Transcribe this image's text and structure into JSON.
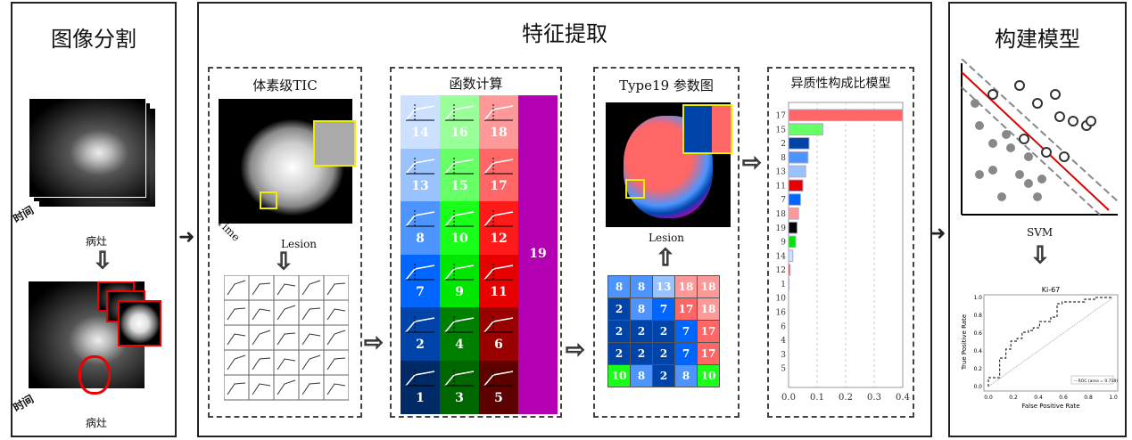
{
  "panels": {
    "segmentation": {
      "title": "图像分割",
      "time_label": "时间",
      "lesion_label": "病灶"
    },
    "feature": {
      "title": "特征提取",
      "tic": {
        "title": "体素级TIC",
        "time_label": "Time",
        "lesion_label": "Lesion"
      },
      "functions": {
        "title": "函数计算",
        "columns": [
          [
            {
              "n": "14",
              "color": "#cce0ff"
            },
            {
              "n": "13",
              "color": "#99c2ff"
            },
            {
              "n": "8",
              "color": "#4d94ff"
            },
            {
              "n": "7",
              "color": "#0066ff"
            },
            {
              "n": "2",
              "color": "#0044aa"
            },
            {
              "n": "1",
              "color": "#002a66"
            }
          ],
          [
            {
              "n": "16",
              "color": "#99ff99"
            },
            {
              "n": "15",
              "color": "#66ff66"
            },
            {
              "n": "10",
              "color": "#1aff1a"
            },
            {
              "n": "9",
              "color": "#00e600"
            },
            {
              "n": "4",
              "color": "#008000"
            },
            {
              "n": "3",
              "color": "#006600"
            }
          ],
          [
            {
              "n": "18",
              "color": "#ff9999"
            },
            {
              "n": "17",
              "color": "#ff6666"
            },
            {
              "n": "12",
              "color": "#ff1a1a"
            },
            {
              "n": "11",
              "color": "#e60000"
            },
            {
              "n": "6",
              "color": "#990000"
            },
            {
              "n": "5",
              "color": "#5c0000"
            }
          ]
        ],
        "type19": {
          "n": "19",
          "color": "#b300b3"
        }
      },
      "type19_map": {
        "title": "Type19 参数图",
        "lesion_label": "Lesion",
        "grid": [
          [
            "8",
            "8",
            "13",
            "18",
            "18"
          ],
          [
            "2",
            "8",
            "7",
            "17",
            "18"
          ],
          [
            "2",
            "2",
            "2",
            "7",
            "17"
          ],
          [
            "2",
            "2",
            "2",
            "7",
            "17"
          ],
          [
            "10",
            "8",
            "2",
            "8",
            "10"
          ]
        ]
      },
      "heterogeneity": {
        "title": "异质性构成比模型"
      }
    },
    "model": {
      "title": "构建模型",
      "svm_label": "SVM"
    }
  },
  "chart_data": [
    {
      "type": "bar",
      "orientation": "horizontal",
      "categories": [
        "17",
        "15",
        "2",
        "8",
        "13",
        "11",
        "7",
        "18",
        "19",
        "9",
        "14",
        "12",
        "1",
        "10",
        "16",
        "6",
        "4",
        "3",
        "5"
      ],
      "values": [
        0.4,
        0.12,
        0.072,
        0.068,
        0.06,
        0.05,
        0.042,
        0.035,
        0.03,
        0.025,
        0.015,
        0.005,
        0.002,
        0,
        0,
        0,
        0,
        0,
        0
      ],
      "xlim": [
        0,
        0.4
      ],
      "xticks": [
        "0.0",
        "0.1",
        "0.2",
        "0.3",
        "0.4"
      ],
      "grid": "vertical dashed"
    },
    {
      "type": "line",
      "title": "Ki-67",
      "xlabel": "False Positive Rate",
      "ylabel": "True Positive Rate",
      "xlim": [
        0,
        1
      ],
      "ylim": [
        0,
        1
      ],
      "xticks": [
        "0.0",
        "0.2",
        "0.4",
        "0.6",
        "0.8",
        "1.0"
      ],
      "yticks": [
        "0.0",
        "0.2",
        "0.4",
        "0.6",
        "0.8",
        "1.0"
      ],
      "legend": "ROC (area = 0.718)",
      "legend_position": "lower-right",
      "x": [
        0,
        0,
        0.09,
        0.09,
        0.14,
        0.14,
        0.18,
        0.18,
        0.23,
        0.23,
        0.27,
        0.27,
        0.32,
        0.32,
        0.36,
        0.36,
        0.41,
        0.41,
        0.5,
        0.5,
        0.55,
        0.55,
        0.59,
        0.59,
        0.77,
        0.77,
        0.86,
        0.86,
        1
      ],
      "y": [
        0,
        0.1,
        0.1,
        0.32,
        0.32,
        0.42,
        0.42,
        0.51,
        0.51,
        0.54,
        0.54,
        0.61,
        0.61,
        0.63,
        0.63,
        0.66,
        0.66,
        0.73,
        0.73,
        0.78,
        0.78,
        0.93,
        0.93,
        0.95,
        0.95,
        0.98,
        0.98,
        1,
        1
      ]
    }
  ]
}
